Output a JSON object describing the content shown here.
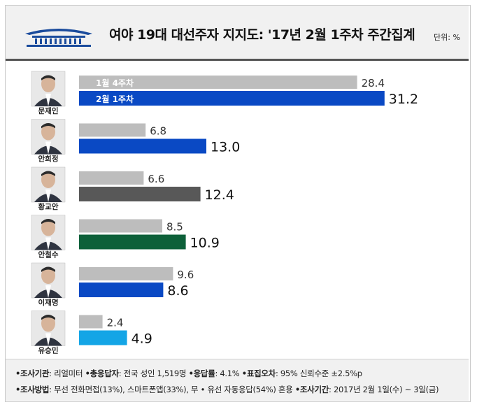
{
  "header": {
    "title": "여야 19대 대선주자 지지도: '17년 2월 1주차 주간집계",
    "unit": "단위: %"
  },
  "chart_data": {
    "type": "bar",
    "orientation": "horizontal",
    "title": "여야 19대 대선주자 지지도: '17년 2월 1주차 주간집계",
    "categories": [
      "문재인",
      "안희정",
      "황교안",
      "안철수",
      "이재명",
      "유승민"
    ],
    "series": [
      {
        "name": "1월 4주차",
        "values": [
          28.4,
          6.8,
          6.6,
          8.5,
          9.6,
          2.4
        ],
        "color": "#bdbdbd"
      },
      {
        "name": "2월 1주차",
        "values": [
          31.2,
          13.0,
          12.4,
          10.9,
          8.6,
          4.9
        ],
        "colors": [
          "#0a49c4",
          "#0a49c4",
          "#585858",
          "#0d6039",
          "#0a49c4",
          "#14a5e6"
        ]
      }
    ],
    "value_labels": {
      "prev": [
        "28.4",
        "6.8",
        "6.6",
        "8.5",
        "9.6",
        "2.4"
      ],
      "curr": [
        "31.2",
        "13.0",
        "12.4",
        "10.9",
        "8.6",
        "4.9"
      ]
    },
    "grid": false
  },
  "footer": {
    "line1": [
      {
        "key": "•조사기관",
        "val": ": 리얼미터 "
      },
      {
        "key": "•총응답자",
        "val": ": 전국 성인 1,519명 "
      },
      {
        "key": "•응답률",
        "val": ": 4.1% "
      },
      {
        "key": "•표집오차",
        "val": ": 95% 신뢰수준 ±2.5%p"
      }
    ],
    "line2": [
      {
        "key": "•조사방법",
        "val": ": 무선 전화면접(13%), 스마트폰앱(33%), 무 • 유선 자동응답(54%) 혼용 "
      },
      {
        "key": "•조사기간",
        "val": ": 2017년 2월 1일(수) ~ 3일(금)"
      }
    ]
  }
}
